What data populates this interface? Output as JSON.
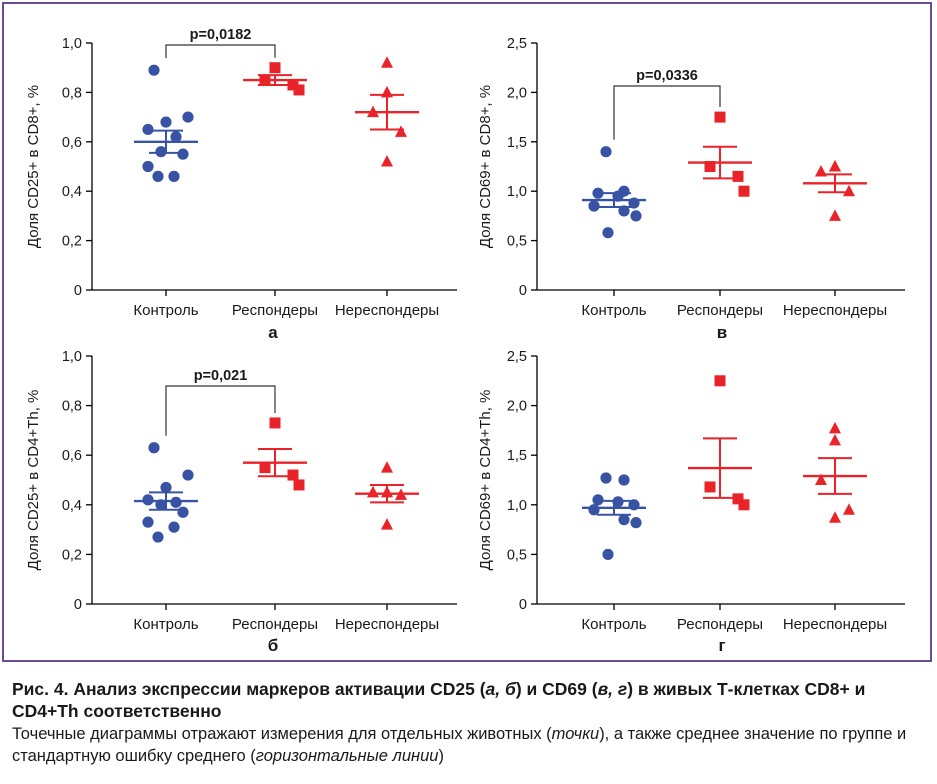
{
  "colors": {
    "blue": "#3953a4",
    "red": "#e8232a",
    "axis": "#000000"
  },
  "chart_data": [
    {
      "type": "scatter",
      "panel_label": "а",
      "ylabel": "Доля CD25+ в CD8+, %",
      "ylim": [
        0,
        1.0
      ],
      "yticks": [
        0,
        0.2,
        0.4,
        0.6,
        0.8,
        1.0
      ],
      "ytick_labels": [
        "0",
        "0,2",
        "0,4",
        "0,6",
        "0,8",
        "1,0"
      ],
      "categories": [
        "Контроль",
        "Респондеры",
        "Нереспондеры"
      ],
      "series": [
        {
          "category": "Контроль",
          "marker": "circle",
          "color": "#3953a4",
          "points": [
            0.89,
            0.7,
            0.68,
            0.65,
            0.62,
            0.56,
            0.55,
            0.5,
            0.46,
            0.46
          ],
          "mean": 0.6,
          "sem": 0.045
        },
        {
          "category": "Респондеры",
          "marker": "square",
          "color": "#e8232a",
          "points": [
            0.9,
            0.85,
            0.83,
            0.81
          ],
          "mean": 0.85,
          "sem": 0.02
        },
        {
          "category": "Нереспондеры",
          "marker": "triangle",
          "color": "#e8232a",
          "points": [
            0.92,
            0.8,
            0.72,
            0.64,
            0.52
          ],
          "mean": 0.72,
          "sem": 0.07
        }
      ],
      "bracket": {
        "from": 0,
        "to": 1,
        "label": "p=0,0182"
      }
    },
    {
      "type": "scatter",
      "panel_label": "в",
      "ylabel": "Доля CD69+ в CD8+, %",
      "ylim": [
        0,
        2.5
      ],
      "yticks": [
        0,
        0.5,
        1.0,
        1.5,
        2.0,
        2.5
      ],
      "ytick_labels": [
        "0",
        "0,5",
        "1,0",
        "1,5",
        "2,0",
        "2,5"
      ],
      "categories": [
        "Контроль",
        "Респондеры",
        "Нереспондеры"
      ],
      "series": [
        {
          "category": "Контроль",
          "marker": "circle",
          "color": "#3953a4",
          "points": [
            1.4,
            1.0,
            0.98,
            0.95,
            0.88,
            0.85,
            0.8,
            0.75,
            0.58
          ],
          "mean": 0.91,
          "sem": 0.07
        },
        {
          "category": "Респондеры",
          "marker": "square",
          "color": "#e8232a",
          "points": [
            1.75,
            1.25,
            1.15,
            1.0
          ],
          "mean": 1.29,
          "sem": 0.16
        },
        {
          "category": "Нереспондеры",
          "marker": "triangle",
          "color": "#e8232a",
          "points": [
            1.25,
            1.25,
            1.2,
            1.0,
            0.75
          ],
          "mean": 1.08,
          "sem": 0.09
        }
      ],
      "bracket": {
        "from": 0,
        "to": 1,
        "label": "p=0,0336"
      }
    },
    {
      "type": "scatter",
      "panel_label": "б",
      "ylabel": "Доля CD25+ в CD4+Th, %",
      "ylim": [
        0,
        1.0
      ],
      "yticks": [
        0,
        0.2,
        0.4,
        0.6,
        0.8,
        1.0
      ],
      "ytick_labels": [
        "0",
        "0,2",
        "0,4",
        "0,6",
        "0,8",
        "1,0"
      ],
      "categories": [
        "Контроль",
        "Респондеры",
        "Нереспондеры"
      ],
      "series": [
        {
          "category": "Контроль",
          "marker": "circle",
          "color": "#3953a4",
          "points": [
            0.63,
            0.52,
            0.47,
            0.42,
            0.41,
            0.4,
            0.37,
            0.33,
            0.31,
            0.27
          ],
          "mean": 0.415,
          "sem": 0.035
        },
        {
          "category": "Респондеры",
          "marker": "square",
          "color": "#e8232a",
          "points": [
            0.73,
            0.55,
            0.52,
            0.48
          ],
          "mean": 0.57,
          "sem": 0.055
        },
        {
          "category": "Нереспондеры",
          "marker": "triangle",
          "color": "#e8232a",
          "points": [
            0.55,
            0.45,
            0.45,
            0.44,
            0.32
          ],
          "mean": 0.445,
          "sem": 0.035
        }
      ],
      "bracket": {
        "from": 0,
        "to": 1,
        "label": "p=0,021"
      }
    },
    {
      "type": "scatter",
      "panel_label": "г",
      "ylabel": "Доля CD69+ в CD4+Th, %",
      "ylim": [
        0,
        2.5
      ],
      "yticks": [
        0,
        0.5,
        1.0,
        1.5,
        2.0,
        2.5
      ],
      "ytick_labels": [
        "0",
        "0,5",
        "1,0",
        "1,5",
        "2,0",
        "2,5"
      ],
      "categories": [
        "Контроль",
        "Респондеры",
        "Нереспондеры"
      ],
      "series": [
        {
          "category": "Контроль",
          "marker": "circle",
          "color": "#3953a4",
          "points": [
            1.27,
            1.25,
            1.05,
            1.03,
            1.0,
            0.95,
            0.85,
            0.82,
            0.5
          ],
          "mean": 0.97,
          "sem": 0.07
        },
        {
          "category": "Респондеры",
          "marker": "square",
          "color": "#e8232a",
          "points": [
            2.25,
            1.18,
            1.06,
            1.0
          ],
          "mean": 1.37,
          "sem": 0.3
        },
        {
          "category": "Нереспондеры",
          "marker": "triangle",
          "color": "#e8232a",
          "points": [
            1.77,
            1.65,
            1.25,
            0.95,
            0.87
          ],
          "mean": 1.29,
          "sem": 0.18
        }
      ],
      "bracket": null
    }
  ],
  "caption": {
    "title_parts": [
      "Рис. 4. Анализ экспрессии маркеров активации CD25 (",
      "а, б",
      ") и CD69 (",
      "в, г",
      ") в живых Т-клетках CD8+ и CD4+Th соответственно"
    ],
    "body_parts": [
      "Точечные диаграммы отражают измерения для отдельных животных (",
      "точки",
      "), а также среднее значение по группе и стандартную ошибку среднего (",
      "горизонтальные линии",
      ")"
    ]
  }
}
